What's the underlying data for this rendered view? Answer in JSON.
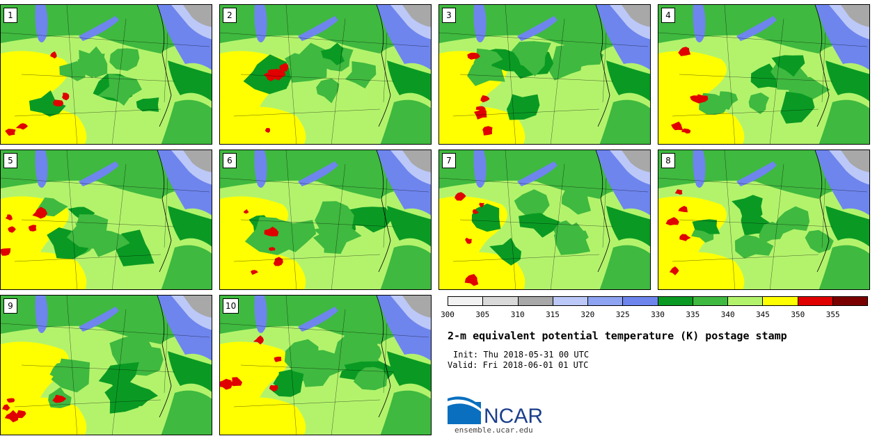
{
  "figure": {
    "title": "2-m equivalent potential temperature (K) postage stamp",
    "init": "Init: Thu 2018-05-31 00 UTC",
    "valid": "Valid: Fri 2018-06-01 01 UTC",
    "logo_text": "NCAR",
    "site": "ensemble.ucar.edu"
  },
  "members": [
    "1",
    "2",
    "3",
    "4",
    "5",
    "6",
    "7",
    "8",
    "9",
    "10"
  ],
  "colorbar": {
    "ticks": [
      "300",
      "305",
      "310",
      "315",
      "320",
      "325",
      "330",
      "335",
      "340",
      "345",
      "350",
      "355"
    ],
    "colors": [
      "#f2f2f2",
      "#d9d9d9",
      "#a8a8a8",
      "#bcc8f8",
      "#8ea4f2",
      "#6e85ee",
      "#0a9a23",
      "#3fb93f",
      "#b3f36c",
      "#ffff00",
      "#e00000",
      "#7a0000"
    ]
  },
  "map_colors": {
    "light_green": "#b3f36c",
    "green": "#3fb93f",
    "dark_green": "#0a9a23",
    "yellow": "#ffff00",
    "red": "#e00000",
    "blue": "#6e85ee",
    "light_blue": "#bcc8f8",
    "gray": "#a8a8a8"
  }
}
